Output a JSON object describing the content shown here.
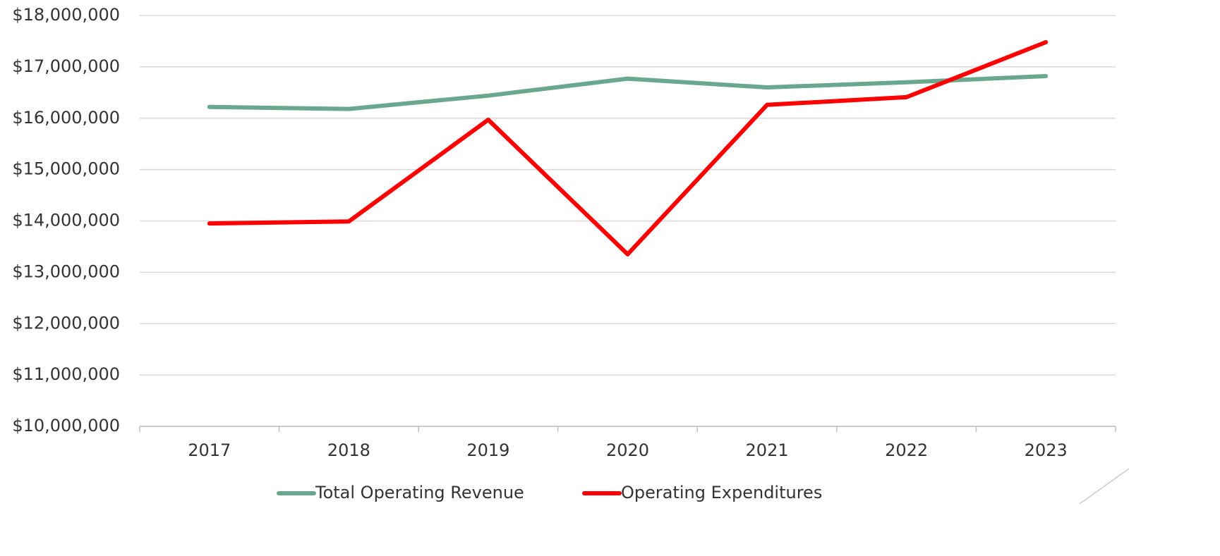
{
  "chart_data": {
    "type": "line",
    "categories": [
      "2017",
      "2018",
      "2019",
      "2020",
      "2021",
      "2022",
      "2023"
    ],
    "series": [
      {
        "name": "Total Operating Revenue",
        "color": "#6aa88e",
        "values": [
          16220000,
          16180000,
          16440000,
          16770000,
          16600000,
          16700000,
          16820000
        ]
      },
      {
        "name": "Operating Expenditures",
        "color": "#ff0000",
        "values": [
          13950000,
          13990000,
          15970000,
          13350000,
          16260000,
          16410000,
          17480000
        ]
      }
    ],
    "ylim": [
      10000000,
      18000000
    ],
    "yticks": [
      {
        "value": 10000000,
        "label": "$10,000,000"
      },
      {
        "value": 11000000,
        "label": "$11,000,000"
      },
      {
        "value": 12000000,
        "label": "$12,000,000"
      },
      {
        "value": 13000000,
        "label": "$13,000,000"
      },
      {
        "value": 14000000,
        "label": "$14,000,000"
      },
      {
        "value": 15000000,
        "label": "$15,000,000"
      },
      {
        "value": 16000000,
        "label": "$16,000,000"
      },
      {
        "value": 17000000,
        "label": "$17,000,000"
      },
      {
        "value": 18000000,
        "label": "$18,000,000"
      }
    ],
    "grid": true,
    "legend": "bottom"
  }
}
